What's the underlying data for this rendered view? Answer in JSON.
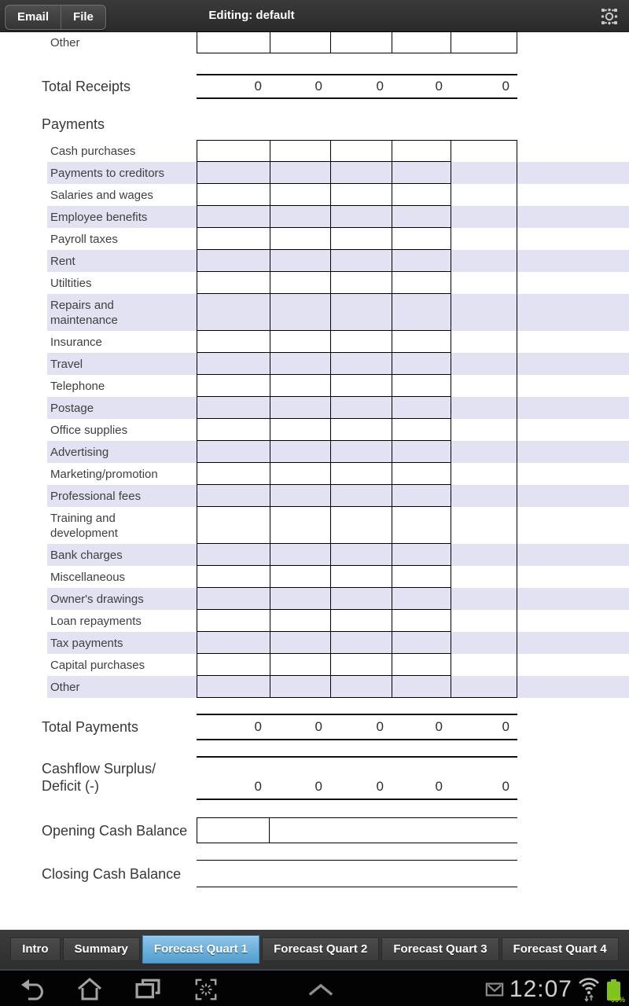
{
  "topbar": {
    "email_button": "Email",
    "file_button": "File",
    "title": "Editing: default"
  },
  "receipts": {
    "last_row_label": "Other",
    "total_label": "Total Receipts",
    "totals": [
      "0",
      "0",
      "0",
      "0",
      "0"
    ]
  },
  "payments": {
    "section_header": "Payments",
    "rows": [
      "Cash purchases",
      "Payments to creditors",
      "Salaries and wages",
      "Employee benefits",
      "Payroll taxes",
      "Rent",
      "Utiltities",
      "Repairs and\nmaintenance",
      "Insurance",
      "Travel",
      "Telephone",
      "Postage",
      "Office supplies",
      "Advertising",
      "Marketing/promotion",
      "Professional fees",
      "Training and\ndevelopment",
      "Bank charges",
      "Miscellaneous",
      "Owner's drawings",
      "Loan repayments",
      "Tax payments",
      "Capital purchases",
      "Other"
    ],
    "total_label": "Total Payments",
    "totals": [
      "0",
      "0",
      "0",
      "0",
      "0"
    ]
  },
  "cashflow": {
    "label": "Cashflow Surplus/\nDeficit (-)",
    "values": [
      "0",
      "0",
      "0",
      "0",
      "0"
    ]
  },
  "opening": {
    "label": "Opening Cash Balance"
  },
  "closing": {
    "label": "Closing Cash Balance"
  },
  "tabs": [
    {
      "label": "Intro",
      "selected": false
    },
    {
      "label": "Summary",
      "selected": false
    },
    {
      "label": "Forecast Quart 1",
      "selected": true
    },
    {
      "label": "Forecast Quart 2",
      "selected": false
    },
    {
      "label": "Forecast Quart 3",
      "selected": false
    },
    {
      "label": "Forecast Quart 4",
      "selected": false
    }
  ],
  "statusbar": {
    "time": "12:07",
    "battery_percent": "99%"
  },
  "icons": {
    "topbar_right": "glyph-grid-icon",
    "nav": [
      "back-icon",
      "home-icon",
      "recent-apps-icon",
      "screen-capture-icon",
      "chevron-up-icon"
    ],
    "status": [
      "gmail-notification-icon",
      "wifi-icon",
      "battery-icon"
    ]
  },
  "colors": {
    "stripe": "#e2e2f3",
    "tab_selected": "#58a4da",
    "battery_green": "#7fc41c",
    "top_bar": "#2f2f2f"
  }
}
